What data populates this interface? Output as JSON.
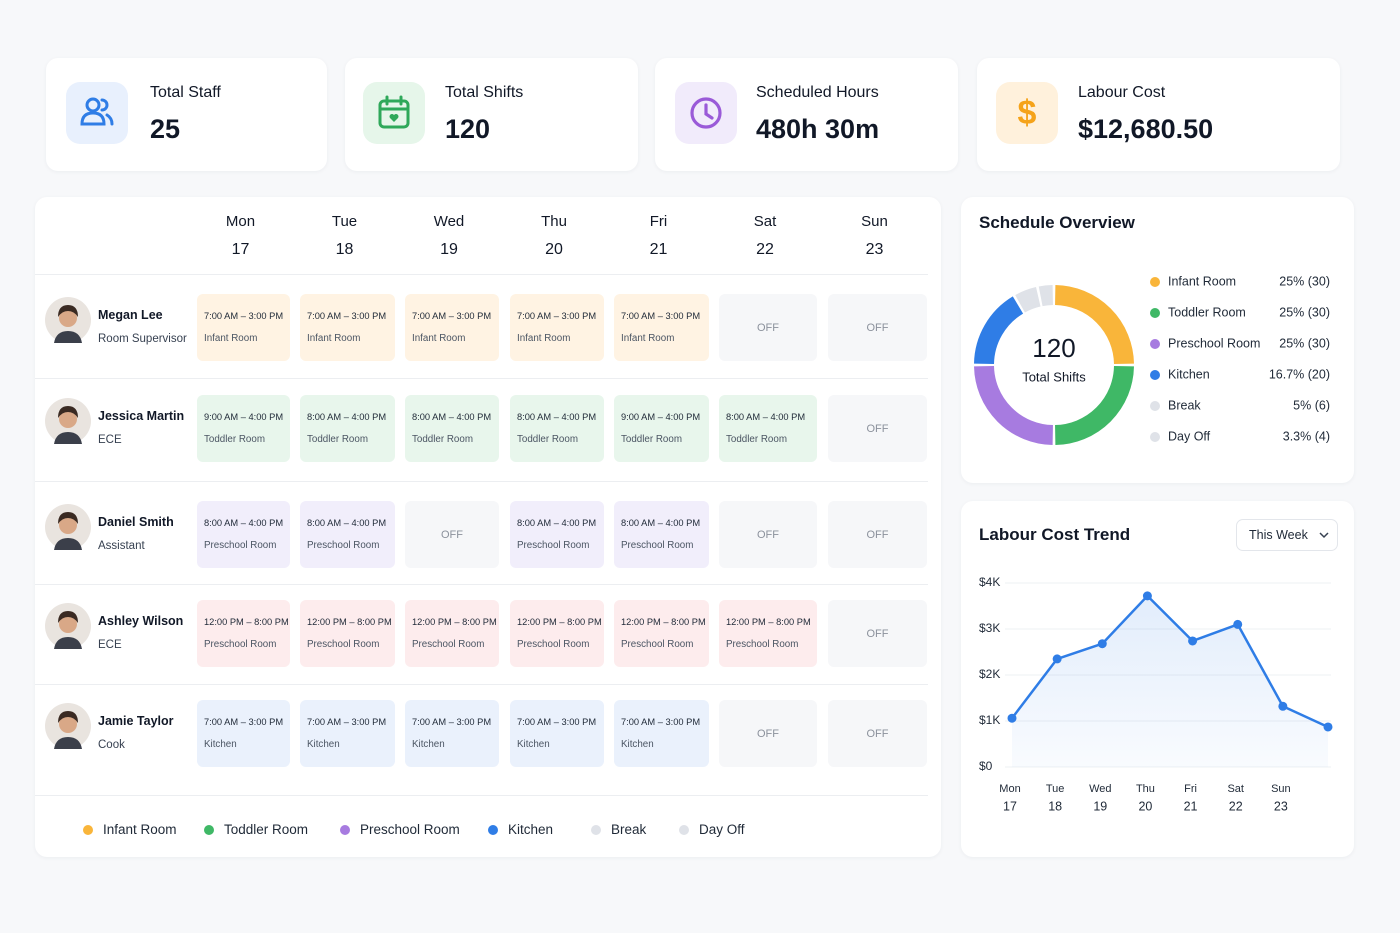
{
  "stats": [
    {
      "label": "Total Staff",
      "value": "25"
    },
    {
      "label": "Total Shifts",
      "value": "120"
    },
    {
      "label": "Scheduled Hours",
      "value": "480h 30m"
    },
    {
      "label": "Labour Cost",
      "value": "$12,680.50"
    }
  ],
  "schedule": {
    "days": [
      {
        "name": "Mon",
        "date": "17"
      },
      {
        "name": "Tue",
        "date": "18"
      },
      {
        "name": "Wed",
        "date": "19"
      },
      {
        "name": "Thu",
        "date": "20"
      },
      {
        "name": "Fri",
        "date": "21"
      },
      {
        "name": "Sat",
        "date": "22"
      },
      {
        "name": "Sun",
        "date": "23"
      }
    ],
    "staff": [
      {
        "name": "Megan Lee",
        "role": "Room Supervisor",
        "tint": "#fff3e3",
        "shifts": [
          {
            "time": "7:00 AM – 3:00 PM",
            "room": "Infant Room"
          },
          {
            "time": "7:00 AM – 3:00 PM",
            "room": "Infant Room"
          },
          {
            "time": "7:00 AM – 3:00 PM",
            "room": "Infant Room"
          },
          {
            "time": "7:00 AM – 3:00 PM",
            "room": "Infant Room"
          },
          {
            "time": "7:00 AM – 3:00 PM",
            "room": "Infant Room"
          },
          "OFF",
          "OFF"
        ]
      },
      {
        "name": "Jessica Martin",
        "role": "ECE",
        "tint": "#e8f6ec",
        "shifts": [
          {
            "time": "9:00 AM – 4:00 PM",
            "room": "Toddler Room"
          },
          {
            "time": "8:00 AM – 4:00 PM",
            "room": "Toddler Room"
          },
          {
            "time": "8:00 AM – 4:00 PM",
            "room": "Toddler Room"
          },
          {
            "time": "8:00 AM – 4:00 PM",
            "room": "Toddler Room"
          },
          {
            "time": "9:00 AM – 4:00 PM",
            "room": "Toddler Room"
          },
          {
            "time": "8:00 AM – 4:00 PM",
            "room": "Toddler Room"
          },
          "OFF"
        ]
      },
      {
        "name": "Daniel Smith",
        "role": "Assistant",
        "tint": "#f1eefb",
        "shifts": [
          {
            "time": "8:00 AM – 4:00 PM",
            "room": "Preschool Room"
          },
          {
            "time": "8:00 AM – 4:00 PM",
            "room": "Preschool Room"
          },
          "OFF",
          {
            "time": "8:00 AM – 4:00 PM",
            "room": "Preschool Room"
          },
          {
            "time": "8:00 AM – 4:00 PM",
            "room": "Preschool Room"
          },
          "OFF",
          "OFF"
        ]
      },
      {
        "name": "Ashley Wilson",
        "role": "ECE",
        "tint": "#fdeced",
        "shifts": [
          {
            "time": "12:00 PM – 8:00 PM",
            "room": "Preschool Room"
          },
          {
            "time": "12:00 PM – 8:00 PM",
            "room": "Preschool Room"
          },
          {
            "time": "12:00 PM – 8:00 PM",
            "room": "Preschool Room"
          },
          {
            "time": "12:00 PM – 8:00 PM",
            "room": "Preschool Room"
          },
          {
            "time": "12:00 PM – 8:00 PM",
            "room": "Preschool Room"
          },
          {
            "time": "12:00 PM – 8:00 PM",
            "room": "Preschool Room"
          },
          "OFF"
        ]
      },
      {
        "name": "Jamie Taylor",
        "role": "Cook",
        "tint": "#eaf1fc",
        "shifts": [
          {
            "time": "7:00 AM – 3:00 PM",
            "room": "Kitchen"
          },
          {
            "time": "7:00 AM – 3:00 PM",
            "room": "Kitchen"
          },
          {
            "time": "7:00 AM – 3:00 PM",
            "room": "Kitchen"
          },
          {
            "time": "7:00 AM – 3:00 PM",
            "room": "Kitchen"
          },
          {
            "time": "7:00 AM – 3:00 PM",
            "room": "Kitchen"
          },
          "OFF",
          "OFF"
        ]
      }
    ]
  },
  "legend": [
    {
      "name": "Infant Room",
      "color": "#f9b53a"
    },
    {
      "name": "Toddler Room",
      "color": "#3fb866"
    },
    {
      "name": "Preschool Room",
      "color": "#a77be0"
    },
    {
      "name": "Kitchen",
      "color": "#2f7de6"
    },
    {
      "name": "Break",
      "color": "#dfe2e8"
    },
    {
      "name": "Day Off",
      "color": "#dfe2e8"
    }
  ],
  "overview": {
    "title": "Schedule Overview",
    "center_value": 120,
    "center_label": "Total Shifts",
    "chart_data": {
      "type": "pie",
      "categories": [
        "Infant Room",
        "Toddler Room",
        "Preschool Room",
        "Kitchen",
        "Break",
        "Day Off"
      ],
      "values": [
        30,
        30,
        30,
        20,
        6,
        4
      ],
      "value_labels": [
        "25% (30)",
        "25% (30)",
        "25% (30)",
        "16.7% (20)",
        "5% (6)",
        "3.3% (4)"
      ],
      "colors": [
        "#f9b53a",
        "#3fb866",
        "#a77be0",
        "#2f7de6",
        "#dfe2e8",
        "#dfe2e8"
      ]
    }
  },
  "trend": {
    "title": "Labour Cost Trend",
    "range": "This Week",
    "chart_data": {
      "type": "line",
      "categories": [
        "Mon",
        "Tue",
        "Wed",
        "Thu",
        "Fri",
        "Sat",
        "Sun",
        null
      ],
      "dates": [
        "17",
        "18",
        "19",
        "20",
        "21",
        "22",
        "23",
        null
      ],
      "values": [
        1060,
        2350,
        2680,
        3720,
        2740,
        3100,
        1320,
        870
      ],
      "color": "#2f7de6",
      "ylim": [
        0,
        4000
      ],
      "yticks": [
        {
          "value": 0,
          "label": "$0"
        },
        {
          "value": 1000,
          "label": "$1K"
        },
        {
          "value": 2000,
          "label": "$2K"
        },
        {
          "value": 3000,
          "label": "$3K"
        },
        {
          "value": 4000,
          "label": "$4K"
        }
      ],
      "grid": true
    }
  }
}
